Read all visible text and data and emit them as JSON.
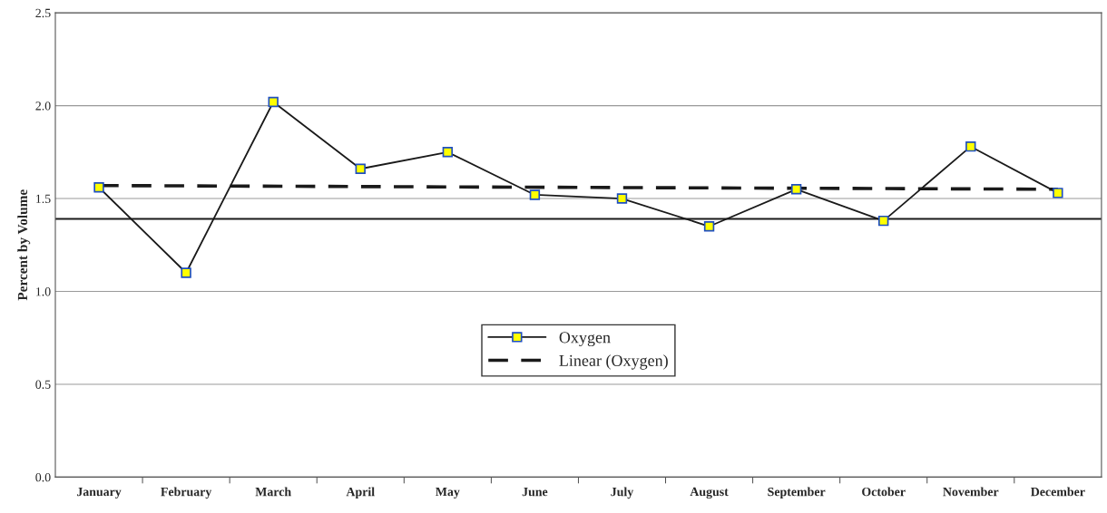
{
  "chart_data": {
    "type": "line",
    "ylabel": "Percent by Volume",
    "categories": [
      "January",
      "February",
      "March",
      "April",
      "May",
      "June",
      "July",
      "August",
      "September",
      "October",
      "November",
      "December"
    ],
    "series": [
      {
        "name": "Oxygen",
        "color": "#1a1a1a",
        "marker": "square",
        "line_style": "solid",
        "values": [
          1.56,
          1.1,
          2.02,
          1.66,
          1.75,
          1.52,
          1.5,
          1.35,
          1.55,
          1.38,
          1.78,
          1.53
        ]
      },
      {
        "name": "Linear (Oxygen)",
        "color": "#1a1a1a",
        "marker": "none",
        "line_style": "dashed",
        "x": [
          "January",
          "December"
        ],
        "values": [
          1.57,
          1.55
        ]
      }
    ],
    "ylim": [
      0,
      2.5
    ],
    "yticks": [
      {
        "value": 0,
        "label": "0.0"
      },
      {
        "value": 0.5,
        "label": "0.5"
      },
      {
        "value": 1.0,
        "label": "1.0"
      },
      {
        "value": 1.5,
        "label": "1.5"
      },
      {
        "value": 2.0,
        "label": "2.0"
      },
      {
        "value": 2.5,
        "label": "2.5"
      }
    ],
    "ref_lines": [
      {
        "axis": "y",
        "value": 1.39,
        "color": "#1a1a1a",
        "line_style": "solid"
      }
    ],
    "grid": "y",
    "legend": "bottom"
  }
}
